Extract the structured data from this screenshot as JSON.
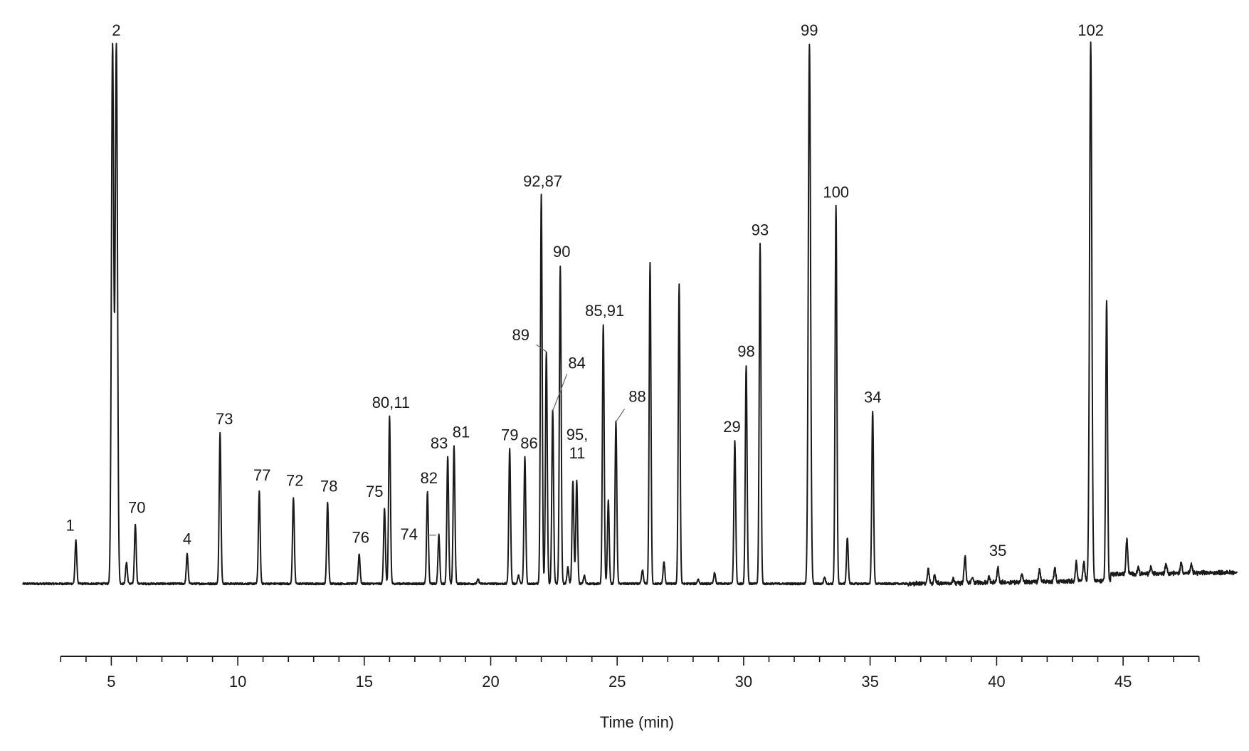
{
  "chart_data": {
    "type": "line",
    "title": "",
    "xlabel": "Time (min)",
    "ylabel": "",
    "xlim": [
      1.5,
      49.5
    ],
    "ylim": [
      0,
      100
    ],
    "grid": false,
    "x_ticks": [
      "5",
      "10",
      "15",
      "20",
      "25",
      "30",
      "35",
      "40",
      "45"
    ],
    "x_tick_values": [
      5,
      10,
      15,
      20,
      25,
      30,
      35,
      40,
      45
    ],
    "x_minor_step": 1,
    "x_axis_range": [
      3,
      48
    ],
    "peaks": [
      {
        "t": 3.6,
        "h": 8,
        "label": "1"
      },
      {
        "t": 5.05,
        "h": 100,
        "label": ""
      },
      {
        "t": 5.2,
        "h": 100,
        "label": "2"
      },
      {
        "t": 5.6,
        "h": 4,
        "label": ""
      },
      {
        "t": 5.95,
        "h": 11,
        "label": "70"
      },
      {
        "t": 8.0,
        "h": 5.5,
        "label": "4"
      },
      {
        "t": 9.3,
        "h": 28,
        "label": "73"
      },
      {
        "t": 10.85,
        "h": 17,
        "label": "77"
      },
      {
        "t": 12.2,
        "h": 16,
        "label": "72"
      },
      {
        "t": 13.55,
        "h": 15,
        "label": "78"
      },
      {
        "t": 14.8,
        "h": 5.5,
        "label": "76"
      },
      {
        "t": 15.8,
        "h": 14,
        "label": "75"
      },
      {
        "t": 16.0,
        "h": 31,
        "label": "80,11"
      },
      {
        "t": 17.5,
        "h": 17,
        "label": "82"
      },
      {
        "t": 17.95,
        "h": 9,
        "label": "74"
      },
      {
        "t": 18.3,
        "h": 23.5,
        "label": "83"
      },
      {
        "t": 18.55,
        "h": 25.5,
        "label": "81"
      },
      {
        "t": 19.5,
        "h": 0.8,
        "label": ""
      },
      {
        "t": 20.75,
        "h": 25,
        "label": "79"
      },
      {
        "t": 21.1,
        "h": 1.5,
        "label": ""
      },
      {
        "t": 21.35,
        "h": 23.5,
        "label": "86"
      },
      {
        "t": 22.0,
        "h": 72,
        "label": "92,87"
      },
      {
        "t": 22.2,
        "h": 43,
        "label": "89"
      },
      {
        "t": 22.45,
        "h": 32,
        "label": "84"
      },
      {
        "t": 22.75,
        "h": 59,
        "label": "90"
      },
      {
        "t": 23.05,
        "h": 3,
        "label": ""
      },
      {
        "t": 23.25,
        "h": 19,
        "label": "95, 11"
      },
      {
        "t": 23.4,
        "h": 19,
        "label": ""
      },
      {
        "t": 23.7,
        "h": 1.5,
        "label": ""
      },
      {
        "t": 24.45,
        "h": 48,
        "label": "85,91"
      },
      {
        "t": 24.65,
        "h": 15.5,
        "label": ""
      },
      {
        "t": 24.95,
        "h": 30,
        "label": "88"
      },
      {
        "t": 26.0,
        "h": 2.5,
        "label": ""
      },
      {
        "t": 26.3,
        "h": 59.5,
        "label": ""
      },
      {
        "t": 26.85,
        "h": 4,
        "label": ""
      },
      {
        "t": 27.45,
        "h": 55.5,
        "label": ""
      },
      {
        "t": 28.2,
        "h": 0.8,
        "label": ""
      },
      {
        "t": 28.85,
        "h": 2,
        "label": ""
      },
      {
        "t": 29.65,
        "h": 26.5,
        "label": "29"
      },
      {
        "t": 30.1,
        "h": 40.5,
        "label": "98"
      },
      {
        "t": 30.65,
        "h": 63,
        "label": "93"
      },
      {
        "t": 32.6,
        "h": 100,
        "label": "99"
      },
      {
        "t": 33.2,
        "h": 1.2,
        "label": ""
      },
      {
        "t": 33.65,
        "h": 70,
        "label": "100"
      },
      {
        "t": 34.1,
        "h": 8.5,
        "label": ""
      },
      {
        "t": 35.1,
        "h": 32,
        "label": "34"
      },
      {
        "t": 37.3,
        "h": 2.5,
        "label": ""
      },
      {
        "t": 37.55,
        "h": 1.5,
        "label": ""
      },
      {
        "t": 38.3,
        "h": 0.8,
        "label": ""
      },
      {
        "t": 38.75,
        "h": 5,
        "label": ""
      },
      {
        "t": 39.05,
        "h": 1,
        "label": ""
      },
      {
        "t": 39.7,
        "h": 1,
        "label": ""
      },
      {
        "t": 40.05,
        "h": 2.8,
        "label": "35"
      },
      {
        "t": 41.0,
        "h": 1.5,
        "label": ""
      },
      {
        "t": 41.7,
        "h": 2.2,
        "label": ""
      },
      {
        "t": 42.3,
        "h": 2.5,
        "label": ""
      },
      {
        "t": 43.15,
        "h": 3.5,
        "label": ""
      },
      {
        "t": 43.45,
        "h": 3.5,
        "label": ""
      },
      {
        "t": 43.72,
        "h": 100,
        "label": "102"
      },
      {
        "t": 44.35,
        "h": 52,
        "label": ""
      },
      {
        "t": 45.15,
        "h": 6.5,
        "label": ""
      },
      {
        "t": 45.6,
        "h": 1.2,
        "label": ""
      },
      {
        "t": 46.1,
        "h": 1.2,
        "label": ""
      },
      {
        "t": 46.7,
        "h": 1.8,
        "label": ""
      },
      {
        "t": 47.3,
        "h": 2,
        "label": ""
      },
      {
        "t": 47.7,
        "h": 1.5,
        "label": ""
      }
    ]
  }
}
